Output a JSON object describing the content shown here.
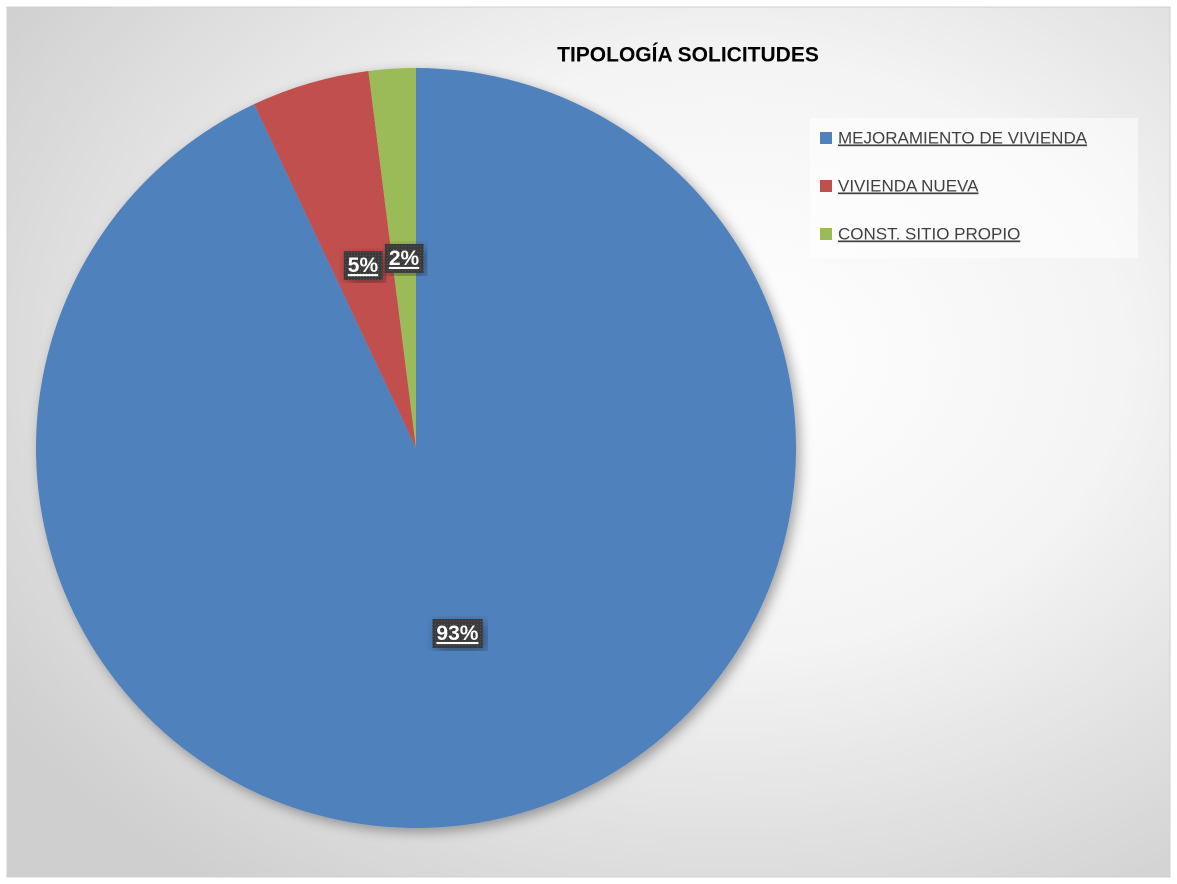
{
  "chart_data": {
    "type": "pie",
    "title": "TIPOLOGÍA SOLICITUDES",
    "categories": [
      "MEJORAMIENTO DE VIVIENDA",
      "VIVIENDA NUEVA",
      "CONST. SITIO PROPIO"
    ],
    "values": [
      93,
      5,
      2
    ],
    "value_labels": [
      "93%",
      "5%",
      "2%"
    ],
    "colors": [
      "#4f81bd",
      "#c0504d",
      "#9bbb59"
    ],
    "legend": "right"
  }
}
